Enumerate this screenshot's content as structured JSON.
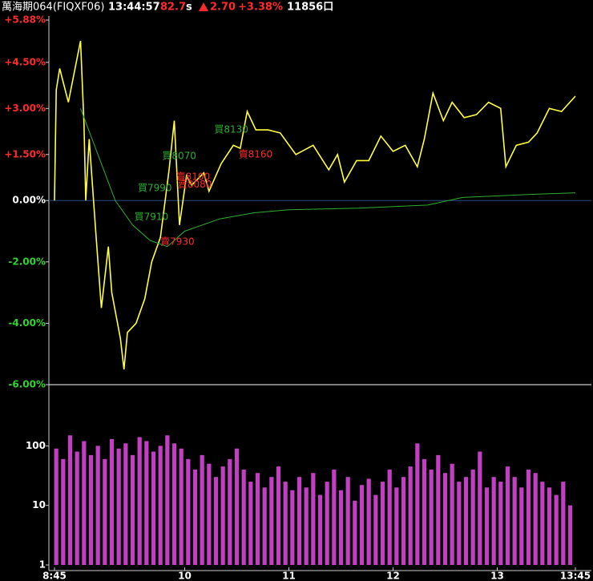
{
  "header": {
    "name": "萬海期064(FIQXF06)",
    "time": "13:44:57",
    "price": "82.7",
    "unit": "s",
    "change": "2.70",
    "change_pct": "+3.38%",
    "volume": "11856口"
  },
  "chart_data": [
    {
      "type": "line",
      "xlim": [
        525,
        825
      ],
      "xticks": [
        {
          "value": 525,
          "label": "8:45"
        },
        {
          "value": 600,
          "label": "10"
        },
        {
          "value": 660,
          "label": "11"
        },
        {
          "value": 720,
          "label": "12"
        },
        {
          "value": 780,
          "label": "13"
        },
        {
          "value": 825,
          "label": "13:45"
        }
      ],
      "ylim": [
        -6,
        5.88
      ],
      "yticks": [
        {
          "value": 5.88,
          "label": "+5.88%"
        },
        {
          "value": 4.5,
          "label": "+4.50%"
        },
        {
          "value": 3,
          "label": "+3.00%"
        },
        {
          "value": 1.5,
          "label": "+1.50%"
        },
        {
          "value": 0,
          "label": "0.00%"
        },
        {
          "value": -2,
          "label": "-2.00%"
        },
        {
          "value": -4,
          "label": "-4.00%"
        },
        {
          "value": -6,
          "label": "-6.00%"
        }
      ],
      "series": [
        {
          "name": "price",
          "color": "#ffff3c",
          "x": [
            525,
            526,
            528,
            533,
            540,
            542,
            543,
            545,
            549,
            552,
            556,
            558,
            560,
            563,
            565,
            567,
            572,
            577,
            581,
            586,
            591,
            594,
            597,
            601,
            604,
            611,
            614,
            621,
            628,
            632,
            636,
            641,
            648,
            655,
            664,
            674,
            683,
            688,
            692,
            699,
            706,
            713,
            720,
            727,
            734,
            738,
            743,
            749,
            754,
            761,
            768,
            775,
            782,
            785,
            791,
            798,
            803,
            810,
            817,
            825
          ],
          "values": [
            0,
            3.6,
            4.3,
            3.2,
            5.2,
            2.5,
            0,
            2.0,
            -1.2,
            -3.5,
            -1.5,
            -3.0,
            -3.6,
            -4.5,
            -5.5,
            -4.3,
            -4.0,
            -3.2,
            -2.0,
            -1.2,
            1.0,
            2.6,
            -0.8,
            0.8,
            0.5,
            0.9,
            0.3,
            1.2,
            1.8,
            1.7,
            2.9,
            2.3,
            2.3,
            2.2,
            1.5,
            1.8,
            1.0,
            1.5,
            0.6,
            1.3,
            1.3,
            2.1,
            1.6,
            1.8,
            1.1,
            2.0,
            3.5,
            2.6,
            3.2,
            2.7,
            2.8,
            3.2,
            3.0,
            1.1,
            1.8,
            1.9,
            2.2,
            3.0,
            2.9,
            3.4
          ]
        },
        {
          "name": "average",
          "color": "#2fae2f",
          "x": [
            540,
            550,
            560,
            570,
            580,
            590,
            600,
            620,
            640,
            660,
            700,
            740,
            760,
            800,
            825
          ],
          "values": [
            3.0,
            1.5,
            0,
            -0.8,
            -1.3,
            -1.5,
            -1.0,
            -0.6,
            -0.4,
            -0.3,
            -0.25,
            -0.15,
            0.1,
            0.2,
            0.25
          ]
        }
      ],
      "annotations": [
        {
          "text": "買7910",
          "x": 571,
          "y": -0.54,
          "color": "#2fae2f"
        },
        {
          "text": "買7990",
          "x": 573,
          "y": 0.4,
          "color": "#2fae2f"
        },
        {
          "text": "買8070",
          "x": 587,
          "y": 1.44,
          "color": "#2fae2f"
        },
        {
          "text": "賣8100",
          "x": 595,
          "y": 0.76,
          "color": "#ff2a2a"
        },
        {
          "text": "賣8080",
          "x": 596,
          "y": 0.52,
          "color": "#ff2a2a"
        },
        {
          "text": "賣7930",
          "x": 586,
          "y": -1.35,
          "color": "#ff2a2a"
        },
        {
          "text": "買8130",
          "x": 617,
          "y": 2.3,
          "color": "#2fae2f"
        },
        {
          "text": "賣8160",
          "x": 631,
          "y": 1.49,
          "color": "#ff2a2a"
        }
      ]
    },
    {
      "type": "bar",
      "log_scale": true,
      "color": "#c23ec2",
      "xlim": [
        525,
        825
      ],
      "ylim": [
        1,
        1000
      ],
      "yticks": [
        1,
        10,
        100
      ],
      "x": [
        526,
        530,
        534,
        538,
        542,
        546,
        550,
        554,
        558,
        562,
        566,
        570,
        574,
        578,
        582,
        586,
        590,
        594,
        598,
        602,
        606,
        610,
        614,
        618,
        622,
        626,
        630,
        634,
        638,
        642,
        646,
        650,
        654,
        658,
        662,
        666,
        670,
        674,
        678,
        682,
        686,
        690,
        694,
        698,
        702,
        706,
        710,
        714,
        718,
        722,
        726,
        730,
        734,
        738,
        742,
        746,
        750,
        754,
        758,
        762,
        766,
        770,
        774,
        778,
        782,
        786,
        790,
        794,
        798,
        802,
        806,
        810,
        814,
        818,
        822
      ],
      "values": [
        90,
        60,
        150,
        80,
        120,
        70,
        100,
        60,
        130,
        90,
        110,
        70,
        140,
        120,
        80,
        100,
        150,
        110,
        90,
        60,
        40,
        70,
        50,
        30,
        45,
        60,
        90,
        40,
        25,
        35,
        20,
        30,
        45,
        25,
        18,
        30,
        20,
        35,
        15,
        25,
        40,
        18,
        30,
        12,
        22,
        28,
        15,
        25,
        40,
        20,
        30,
        45,
        110,
        60,
        40,
        70,
        35,
        50,
        25,
        30,
        40,
        80,
        20,
        30,
        25,
        45,
        30,
        20,
        40,
        35,
        25,
        20,
        15,
        25,
        10
      ]
    }
  ]
}
